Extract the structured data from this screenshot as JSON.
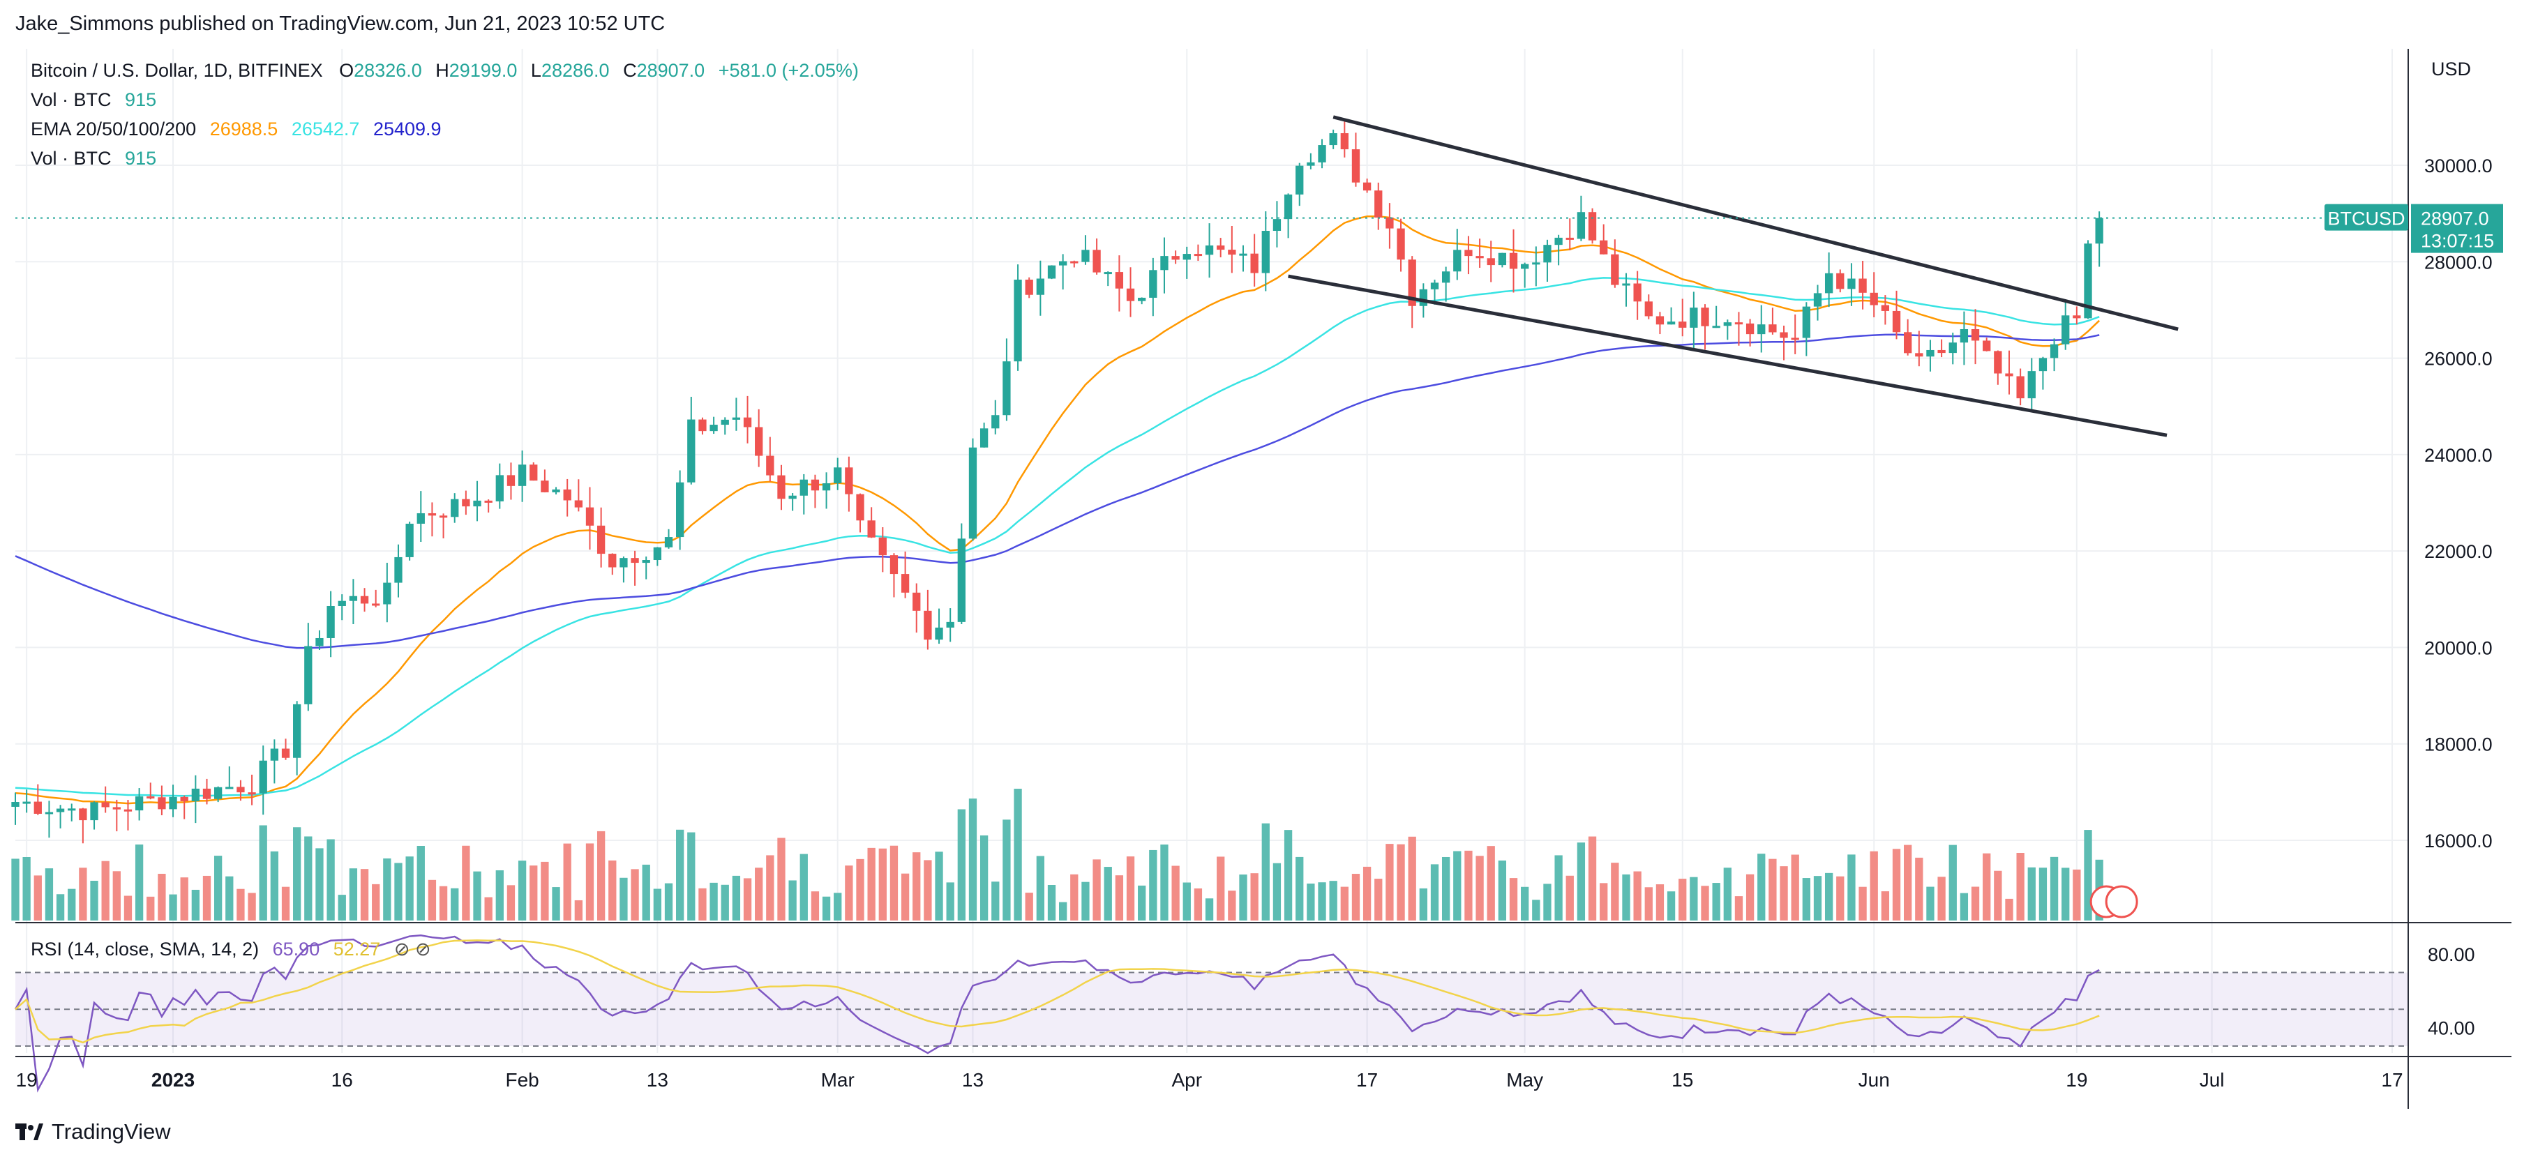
{
  "header": {
    "publisher": "Jake_Simmons published on TradingView.com, Jun 21, 2023 10:52 UTC",
    "footer_brand": "TradingView"
  },
  "legend": {
    "symbol": "Bitcoin / U.S. Dollar, 1D, BITFINEX",
    "o_label": "O",
    "o_value": "28326.0",
    "h_label": "H",
    "h_value": "29199.0",
    "l_label": "L",
    "l_value": "28286.0",
    "c_label": "C",
    "c_value": "28907.0",
    "change": "+581.0 (+2.05%)",
    "vol1_label": "Vol · BTC",
    "vol1_value": "915",
    "ema_label": "EMA 20/50/100/200",
    "ema20_value": "26988.5",
    "ema50_value": "26542.7",
    "ema100_value": "25409.9",
    "vol2_label": "Vol · BTC",
    "vol2_value": "915",
    "rsi_label": "RSI (14, close, SMA, 14, 2)",
    "rsi_value": "65.90",
    "rsi_sma_value": "52.27"
  },
  "price_tag": {
    "symbol": "BTCUSD",
    "price": "28907.0",
    "countdown": "13:07:15"
  },
  "colors": {
    "up": "#26a69a",
    "down": "#ef5350",
    "up_vol": "#5cbcb2",
    "down_vol": "#f28c86",
    "ema20": "#ff9800",
    "ema50": "#38e3e3",
    "ema100": "#4c4ce0",
    "rsi": "#7e57c2",
    "rsi_sma": "#f2d34a",
    "trendline": "#2a2e39"
  },
  "chart_data": {
    "type": "candlestick",
    "symbol": "BTCUSD",
    "interval": "1D",
    "exchange": "BITFINEX",
    "y_axis": {
      "unit": "USD",
      "range": [
        14700,
        32000
      ],
      "ticks": [
        16000,
        18000,
        20000,
        22000,
        24000,
        26000,
        28000,
        30000
      ],
      "tick_labels": [
        "16000.0",
        "18000.0",
        "20000.0",
        "22000.0",
        "24000.0",
        "26000.0",
        "28000.0",
        "30000.0"
      ]
    },
    "x_axis": {
      "range": [
        "2022-12-18",
        "2023-07-24"
      ],
      "ticks": [
        {
          "date": "2022-12-19",
          "label": "19"
        },
        {
          "date": "2023-01-01",
          "label": "2023",
          "bold": true
        },
        {
          "date": "2023-01-16",
          "label": "16"
        },
        {
          "date": "2023-02-01",
          "label": "Feb"
        },
        {
          "date": "2023-02-13",
          "label": "13"
        },
        {
          "date": "2023-03-01",
          "label": "Mar"
        },
        {
          "date": "2023-03-13",
          "label": "13"
        },
        {
          "date": "2023-04-01",
          "label": "Apr"
        },
        {
          "date": "2023-04-17",
          "label": "17"
        },
        {
          "date": "2023-05-01",
          "label": "May"
        },
        {
          "date": "2023-05-15",
          "label": "15"
        },
        {
          "date": "2023-06-01",
          "label": "Jun"
        },
        {
          "date": "2023-06-19",
          "label": "19"
        },
        {
          "date": "2023-07-01",
          "label": "Jul"
        },
        {
          "date": "2023-07-17",
          "label": "17"
        }
      ]
    },
    "last_price": 28907.0,
    "grid": true,
    "closes_weekly": [
      {
        "date": "2022-12-18",
        "close": 16800
      },
      {
        "date": "2022-12-25",
        "close": 16600
      },
      {
        "date": "2023-01-01",
        "close": 16900
      },
      {
        "date": "2023-01-08",
        "close": 17200
      },
      {
        "date": "2023-01-11",
        "close": 17900
      },
      {
        "date": "2023-01-13",
        "close": 19800
      },
      {
        "date": "2023-01-15",
        "close": 20900
      },
      {
        "date": "2023-01-20",
        "close": 21100
      },
      {
        "date": "2023-01-22",
        "close": 22700
      },
      {
        "date": "2023-01-27",
        "close": 23000
      },
      {
        "date": "2023-02-01",
        "close": 23600
      },
      {
        "date": "2023-02-05",
        "close": 23100
      },
      {
        "date": "2023-02-09",
        "close": 21800
      },
      {
        "date": "2023-02-14",
        "close": 22200
      },
      {
        "date": "2023-02-16",
        "close": 24500
      },
      {
        "date": "2023-02-20",
        "close": 24800
      },
      {
        "date": "2023-02-24",
        "close": 23200
      },
      {
        "date": "2023-03-01",
        "close": 23600
      },
      {
        "date": "2023-03-03",
        "close": 22400
      },
      {
        "date": "2023-03-09",
        "close": 20400
      },
      {
        "date": "2023-03-11",
        "close": 20600
      },
      {
        "date": "2023-03-13",
        "close": 24200
      },
      {
        "date": "2023-03-15",
        "close": 24700
      },
      {
        "date": "2023-03-17",
        "close": 27400
      },
      {
        "date": "2023-03-22",
        "close": 28200
      },
      {
        "date": "2023-03-27",
        "close": 27200
      },
      {
        "date": "2023-04-01",
        "close": 28400
      },
      {
        "date": "2023-04-07",
        "close": 27900
      },
      {
        "date": "2023-04-11",
        "close": 30200
      },
      {
        "date": "2023-04-14",
        "close": 30500
      },
      {
        "date": "2023-04-19",
        "close": 28800
      },
      {
        "date": "2023-04-21",
        "close": 27300
      },
      {
        "date": "2023-04-26",
        "close": 28300
      },
      {
        "date": "2023-05-01",
        "close": 28000
      },
      {
        "date": "2023-05-06",
        "close": 28900
      },
      {
        "date": "2023-05-09",
        "close": 27600
      },
      {
        "date": "2023-05-12",
        "close": 26800
      },
      {
        "date": "2023-05-19",
        "close": 26900
      },
      {
        "date": "2023-05-25",
        "close": 26400
      },
      {
        "date": "2023-05-28",
        "close": 27800
      },
      {
        "date": "2023-06-01",
        "close": 27100
      },
      {
        "date": "2023-06-05",
        "close": 25800
      },
      {
        "date": "2023-06-09",
        "close": 26500
      },
      {
        "date": "2023-06-14",
        "close": 25100
      },
      {
        "date": "2023-06-17",
        "close": 26500
      },
      {
        "date": "2023-06-19",
        "close": 26800
      },
      {
        "date": "2023-06-20",
        "close": 28300
      },
      {
        "date": "2023-06-21",
        "close": 28907
      }
    ],
    "series": [
      {
        "name": "EMA 20",
        "last": 26988.5
      },
      {
        "name": "EMA 50",
        "last": 26542.7
      },
      {
        "name": "EMA 100",
        "last": 25409.9
      }
    ],
    "trendlines": [
      {
        "from": {
          "date": "2023-04-14",
          "price": 31000
        },
        "to": {
          "date": "2023-06-28",
          "price": 26600
        }
      },
      {
        "from": {
          "date": "2023-04-10",
          "price": 27700
        },
        "to": {
          "date": "2023-06-27",
          "price": 24400
        }
      }
    ],
    "rsi": {
      "range": [
        30,
        90
      ],
      "ticks": [
        40,
        80
      ],
      "tick_labels": [
        "40.00",
        "80.00"
      ],
      "band": [
        30,
        70
      ],
      "last": 65.9,
      "sma_last": 52.27
    }
  }
}
